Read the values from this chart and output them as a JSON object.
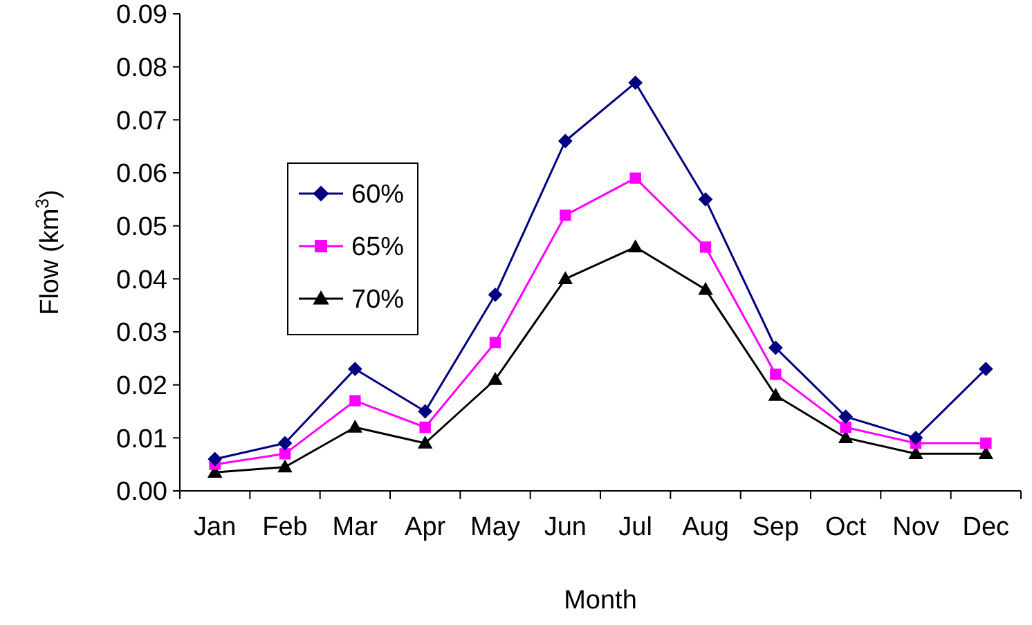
{
  "chart_data": {
    "type": "line",
    "xlabel": "Month",
    "ylabel": "Flow (km$^{3}$)",
    "categories": [
      "Jan",
      "Feb",
      "Mar",
      "Apr",
      "May",
      "Jun",
      "Jul",
      "Aug",
      "Sep",
      "Oct",
      "Nov",
      "Dec"
    ],
    "ylim": [
      0,
      0.09
    ],
    "yticks": [
      {
        "value": 0,
        "label": "0.00"
      },
      {
        "value": 0.01,
        "label": "0.01"
      },
      {
        "value": 0.02,
        "label": "0.02"
      },
      {
        "value": 0.03,
        "label": "0.03"
      },
      {
        "value": 0.04,
        "label": "0.04"
      },
      {
        "value": 0.05,
        "label": "0.05"
      },
      {
        "value": 0.06,
        "label": "0.06"
      },
      {
        "value": 0.07,
        "label": "0.07"
      },
      {
        "value": 0.08,
        "label": "0.08"
      },
      {
        "value": 0.09,
        "label": "0.09"
      }
    ],
    "grid": false,
    "legend": "top left",
    "line_style": "solid",
    "series": [
      {
        "name": "60%",
        "color": "#000080",
        "marker": "diamond",
        "values": [
          0.006,
          0.009,
          0.023,
          0.015,
          0.037,
          0.066,
          0.077,
          0.055,
          0.027,
          0.014,
          0.01,
          0.023
        ]
      },
      {
        "name": "65%",
        "color": "#ff00ff",
        "marker": "square",
        "values": [
          0.005,
          0.007,
          0.017,
          0.012,
          0.028,
          0.052,
          0.059,
          0.046,
          0.022,
          0.012,
          0.009,
          0.009
        ]
      },
      {
        "name": "70%",
        "color": "#000000",
        "marker": "triangle",
        "values": [
          0.0035,
          0.0045,
          0.012,
          0.009,
          0.021,
          0.04,
          0.046,
          0.038,
          0.018,
          0.01,
          0.007,
          0.007
        ]
      }
    ]
  }
}
